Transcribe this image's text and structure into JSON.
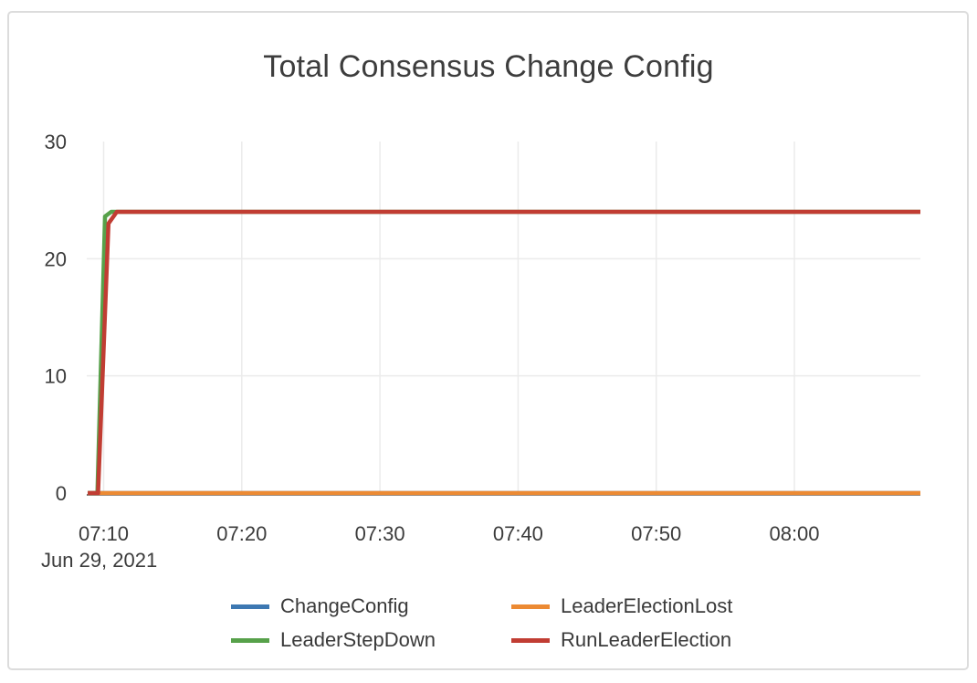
{
  "chart_data": {
    "type": "line",
    "title": "Total Consensus Change Config",
    "x_date_label": "Jun 29, 2021",
    "xlabel": "",
    "ylabel": "",
    "ylim": [
      0,
      30
    ],
    "xlim_minutes_after_0700": [
      8.85,
      69.12
    ],
    "grid": true,
    "legend_position": "bottom",
    "x_ticks": [
      {
        "minutes": 10,
        "label": "07:10"
      },
      {
        "minutes": 20,
        "label": "07:20"
      },
      {
        "minutes": 30,
        "label": "07:30"
      },
      {
        "minutes": 40,
        "label": "07:40"
      },
      {
        "minutes": 50,
        "label": "07:50"
      },
      {
        "minutes": 60,
        "label": "08:00"
      }
    ],
    "y_ticks": [
      {
        "value": 0,
        "label": "0"
      },
      {
        "value": 10,
        "label": "10"
      },
      {
        "value": 20,
        "label": "20"
      },
      {
        "value": 30,
        "label": "30"
      }
    ],
    "y_gridlines": [
      10,
      20
    ],
    "series": [
      {
        "name": "ChangeConfig",
        "color": "#3d78b2",
        "points": [
          [
            8.85,
            0
          ],
          [
            69.12,
            0
          ]
        ]
      },
      {
        "name": "LeaderElectionLost",
        "color": "#ec8a33",
        "points": [
          [
            8.85,
            0
          ],
          [
            69.12,
            0
          ]
        ]
      },
      {
        "name": "LeaderStepDown",
        "color": "#57a14a",
        "points": [
          [
            8.85,
            0
          ],
          [
            9.55,
            0
          ],
          [
            10.1,
            23.6
          ],
          [
            10.55,
            24
          ],
          [
            69.12,
            24
          ]
        ]
      },
      {
        "name": "RunLeaderElection",
        "color": "#c13d33",
        "points": [
          [
            8.85,
            0
          ],
          [
            9.6,
            0
          ],
          [
            10.35,
            23
          ],
          [
            10.95,
            24
          ],
          [
            69.12,
            24
          ]
        ]
      }
    ],
    "colors": {
      "grid": "#ebebeb",
      "axis_line": "#444444",
      "tick_text": "#3b3b3b",
      "title_text": "#3d3d3d",
      "legend_text": "#3a3a3a",
      "card_border": "#dcdcdc"
    }
  }
}
